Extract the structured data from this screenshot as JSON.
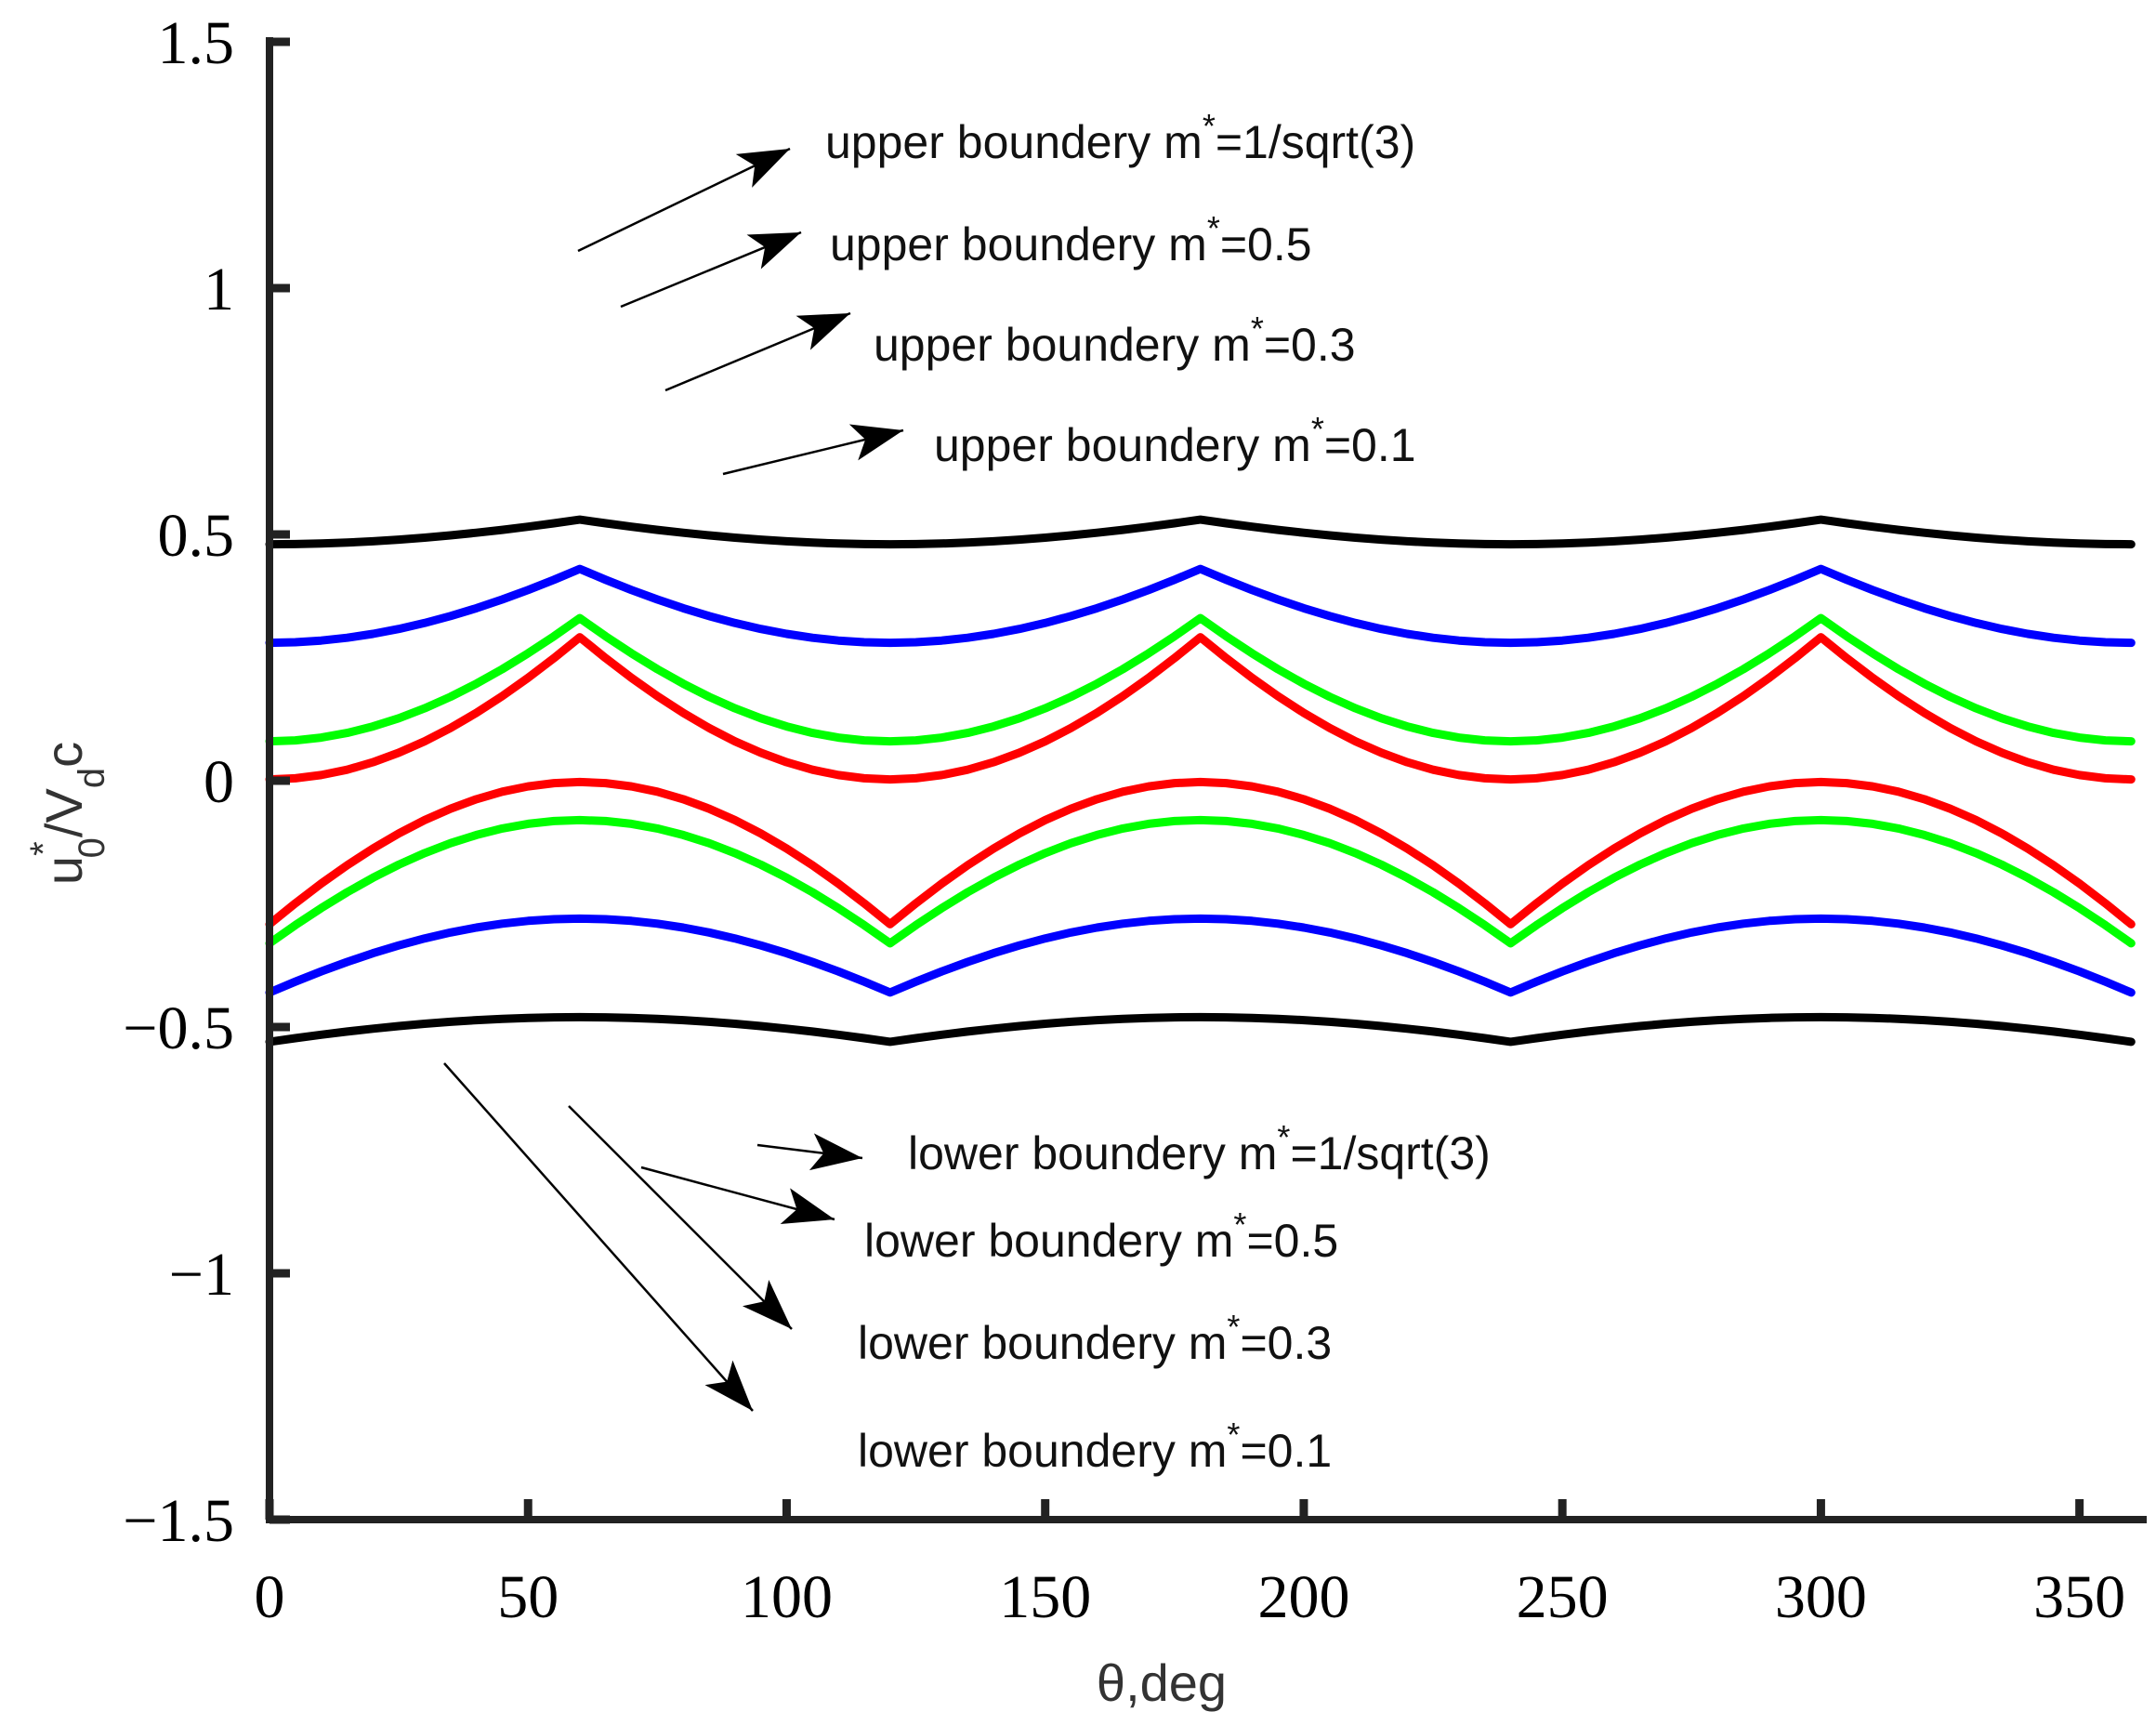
{
  "chart_data": {
    "type": "line",
    "xlabel": "θ,deg",
    "ylabel": {
      "base": "u",
      "sup": "*",
      "sub1": "0",
      "mid": "/V",
      "sub2": "d",
      "tail": "c"
    },
    "xlim": [
      0,
      363
    ],
    "ylim": [
      -1.5,
      1.5
    ],
    "xticks": [
      0,
      50,
      100,
      150,
      200,
      250,
      300,
      350
    ],
    "yticks": [
      {
        "value": 1.5,
        "label": "1.5"
      },
      {
        "value": 1,
        "label": "1"
      },
      {
        "value": 0.5,
        "label": "0.5"
      },
      {
        "value": 0,
        "label": "0"
      },
      {
        "value": -0.5,
        "label": "−0.5"
      },
      {
        "value": -1,
        "label": "−1"
      },
      {
        "value": -1.5,
        "label": "−1.5"
      }
    ],
    "theta_step_deg": 5,
    "series": [
      {
        "name": "upper boundery m*=1/sqrt(3)",
        "m": 0.57735,
        "bound": "upper",
        "color": "#ff0000"
      },
      {
        "name": "upper boundery m*=0.5",
        "m": 0.5,
        "bound": "upper",
        "color": "#00ff00"
      },
      {
        "name": "upper boundery m*=0.3",
        "m": 0.3,
        "bound": "upper",
        "color": "#0000ff"
      },
      {
        "name": "upper boundery m*=0.1",
        "m": 0.1,
        "bound": "upper",
        "color": "#000000"
      },
      {
        "name": "lower boundery m*=1/sqrt(3)",
        "m": 0.57735,
        "bound": "lower",
        "color": "#ff0000"
      },
      {
        "name": "lower boundery m*=0.5",
        "m": 0.5,
        "bound": "lower",
        "color": "#00ff00"
      },
      {
        "name": "lower boundery m*=0.3",
        "m": 0.3,
        "bound": "lower",
        "color": "#0000ff"
      },
      {
        "name": "lower boundery m*=0.1",
        "m": 0.1,
        "bound": "lower",
        "color": "#000000"
      }
    ],
    "annotations": [
      {
        "pre": "upper boundery m",
        "sup": "*",
        "post": "=1/sqrt(3)"
      },
      {
        "pre": "upper boundery m",
        "sup": "*",
        "post": "=0.5"
      },
      {
        "pre": "upper boundery m",
        "sup": "*",
        "post": "=0.3"
      },
      {
        "pre": "upper boundery m",
        "sup": "*",
        "post": "=0.1"
      },
      {
        "pre": "lower boundery m",
        "sup": "*",
        "post": "=1/sqrt(3)"
      },
      {
        "pre": "lower boundery m",
        "sup": "*",
        "post": "=0.5"
      },
      {
        "pre": "lower boundery m",
        "sup": "*",
        "post": "=0.3"
      },
      {
        "pre": "lower boundery m",
        "sup": "*",
        "post": "=0.1"
      }
    ]
  }
}
